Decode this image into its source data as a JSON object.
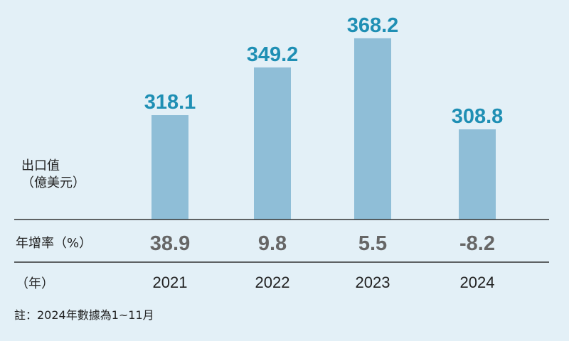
{
  "chart_data": {
    "type": "bar",
    "categories": [
      "2021",
      "2022",
      "2023",
      "2024"
    ],
    "values": [
      318.1,
      349.2,
      368.2,
      308.8
    ],
    "value_labels": [
      "318.1",
      "349.2",
      "368.2",
      "308.8"
    ],
    "growth_rate": [
      "38.9",
      "9.8",
      "5.5",
      "-8.2"
    ],
    "ylabel_line1": "出口值",
    "ylabel_line2": "（億美元）",
    "growth_label": "年增率（%）",
    "year_label": "（年）",
    "note": "註：2024年數據為1~11月",
    "ylim": [
      250,
      370
    ],
    "grid": false,
    "colors": {
      "bar": "#8fbed7",
      "value_label": "#1f8fb4",
      "growth_text": "#666666",
      "rule": "#333333",
      "background": "#e3f0f7"
    }
  }
}
